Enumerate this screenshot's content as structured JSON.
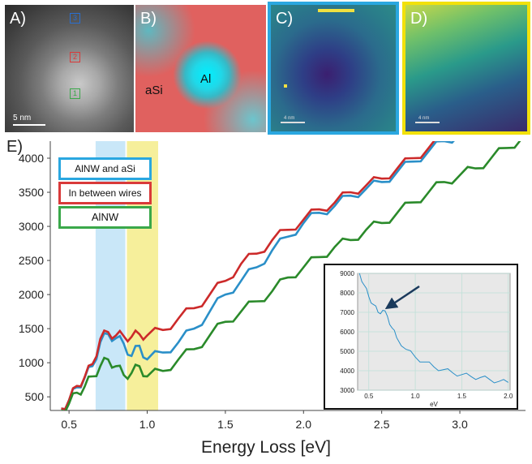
{
  "panels": {
    "a": {
      "label": "A)",
      "scale": "5 nm",
      "regions": [
        "3",
        "2",
        "1"
      ]
    },
    "b": {
      "label": "B)",
      "al": "Al",
      "asi": "aSi"
    },
    "c": {
      "label": "C)",
      "scale": "4 nm"
    },
    "d": {
      "label": "D)",
      "scale": "4 nm"
    },
    "e": {
      "label": "E)"
    }
  },
  "colors": {
    "blue": "#2aa7e0",
    "red": "#d93a3a",
    "green": "#3aa84a",
    "yellow_band": "#f5ec8a",
    "blue_band": "#bfe3f7"
  },
  "chart_data": [
    {
      "type": "line",
      "xlabel": "Energy Loss [eV]",
      "ylabel": "",
      "xlim": [
        0.38,
        3.42
      ],
      "ylim": [
        300,
        4250
      ],
      "xticks": [
        "0.5",
        "1.0",
        "1.5",
        "2.0",
        "2.5",
        "3.0"
      ],
      "yticks": [
        "500",
        "1000",
        "1500",
        "2000",
        "2500",
        "3000",
        "3500",
        "4000"
      ],
      "bands": [
        {
          "from": 0.67,
          "to": 0.86,
          "color": "blue"
        },
        {
          "from": 0.87,
          "to": 1.07,
          "color": "yellow"
        }
      ],
      "legend": [
        "AlNW and aSi",
        "In between wires",
        "AlNW"
      ],
      "series": [
        {
          "name": "AlNW and aSi",
          "color": "#2a8fc8",
          "x": [
            0.45,
            0.5,
            0.55,
            0.6,
            0.65,
            0.7,
            0.75,
            0.8,
            0.85,
            0.9,
            0.95,
            1.0,
            1.1,
            1.2,
            1.3,
            1.4,
            1.5,
            1.6,
            1.7,
            1.8,
            1.9,
            2.0,
            2.1,
            2.2,
            2.3,
            2.4,
            2.5,
            2.6,
            2.7,
            2.8,
            2.9,
            3.0
          ],
          "y": [
            330,
            450,
            640,
            780,
            950,
            1300,
            1420,
            1360,
            1280,
            1100,
            1250,
            1050,
            1150,
            1300,
            1500,
            1750,
            2000,
            2200,
            2400,
            2650,
            2850,
            3050,
            3200,
            3300,
            3450,
            3550,
            3650,
            3800,
            3950,
            4100,
            4250,
            4350
          ]
        },
        {
          "name": "In between wires",
          "color": "#cc2a2a",
          "x": [
            0.45,
            0.5,
            0.55,
            0.6,
            0.65,
            0.7,
            0.75,
            0.8,
            0.85,
            0.9,
            0.95,
            1.0,
            1.1,
            1.2,
            1.3,
            1.4,
            1.5,
            1.6,
            1.7,
            1.8,
            1.9,
            2.0,
            2.1,
            2.2,
            2.3,
            2.4,
            2.5,
            2.6,
            2.7,
            2.8,
            2.9,
            3.0
          ],
          "y": [
            330,
            450,
            660,
            790,
            980,
            1350,
            1450,
            1400,
            1390,
            1380,
            1420,
            1400,
            1480,
            1650,
            1800,
            2000,
            2200,
            2450,
            2600,
            2800,
            2950,
            3100,
            3250,
            3350,
            3500,
            3600,
            3700,
            3850,
            4000,
            4150,
            4300,
            4400
          ]
        },
        {
          "name": "AlNW",
          "color": "#2a8a2a",
          "x": [
            0.45,
            0.5,
            0.55,
            0.6,
            0.65,
            0.7,
            0.75,
            0.8,
            0.85,
            0.9,
            0.95,
            1.0,
            1.1,
            1.2,
            1.3,
            1.4,
            1.5,
            1.6,
            1.7,
            1.8,
            1.9,
            2.0,
            2.1,
            2.2,
            2.3,
            2.4,
            2.5,
            2.6,
            2.7,
            2.8,
            2.9,
            3.0,
            3.1,
            3.2,
            3.3,
            3.4
          ],
          "y": [
            300,
            400,
            560,
            650,
            800,
            950,
            1050,
            950,
            820,
            850,
            950,
            800,
            880,
            1050,
            1200,
            1400,
            1600,
            1750,
            1900,
            2050,
            2250,
            2400,
            2550,
            2700,
            2800,
            2950,
            3050,
            3200,
            3350,
            3500,
            3650,
            3750,
            3850,
            4000,
            4150,
            4300
          ]
        }
      ]
    },
    {
      "type": "line",
      "xlabel": "eV",
      "ylabel": "",
      "xlim": [
        0.38,
        2.02
      ],
      "ylim": [
        3000,
        9000
      ],
      "xticks": [
        "0.5",
        "1.0",
        "1.5",
        "2.0"
      ],
      "yticks": [
        "3000",
        "4000",
        "5000",
        "6000",
        "7000",
        "8000",
        "9000"
      ],
      "series": [
        {
          "color": "#2a8fc8",
          "x": [
            0.4,
            0.45,
            0.5,
            0.55,
            0.6,
            0.65,
            0.7,
            0.75,
            0.8,
            0.9,
            1.0,
            1.1,
            1.2,
            1.3,
            1.4,
            1.5,
            1.6,
            1.7,
            1.8,
            1.9,
            2.0
          ],
          "y": [
            9000,
            8400,
            7800,
            7400,
            7000,
            7100,
            6800,
            6200,
            5700,
            5100,
            4700,
            4450,
            4200,
            4050,
            3900,
            3800,
            3700,
            3650,
            3550,
            3450,
            3400
          ]
        }
      ]
    }
  ]
}
